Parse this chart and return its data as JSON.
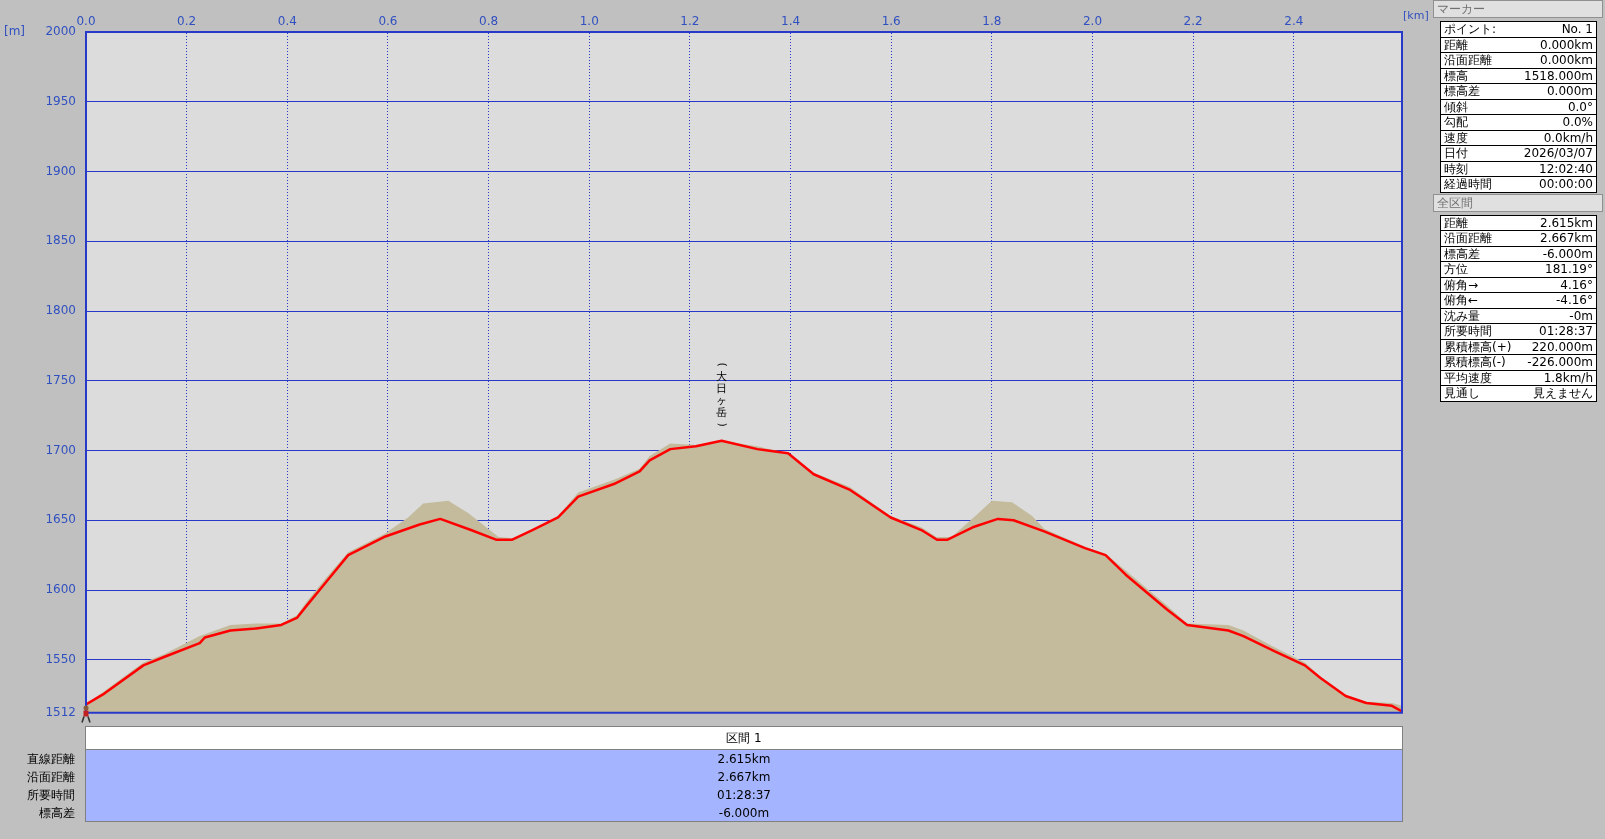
{
  "chart_data": [
    {
      "type": "area",
      "xlabel": "[km]",
      "ylabel": "[m]",
      "xlim": [
        0,
        2.615
      ],
      "ylim": [
        1512,
        2000
      ],
      "xticks": [
        {
          "value": 0,
          "label": "0.0"
        },
        {
          "value": 0.2,
          "label": "0.2"
        },
        {
          "value": 0.4,
          "label": "0.4"
        },
        {
          "value": 0.6,
          "label": "0.6"
        },
        {
          "value": 0.8,
          "label": "0.8"
        },
        {
          "value": 1,
          "label": "1.0"
        },
        {
          "value": 1.2,
          "label": "1.2"
        },
        {
          "value": 1.4,
          "label": "1.4"
        },
        {
          "value": 1.6,
          "label": "1.6"
        },
        {
          "value": 1.8,
          "label": "1.8"
        },
        {
          "value": 2,
          "label": "2.0"
        },
        {
          "value": 2.2,
          "label": "2.2"
        },
        {
          "value": 2.4,
          "label": "2.4"
        }
      ],
      "yticks": [
        1512,
        1550,
        1600,
        1650,
        1700,
        1750,
        1800,
        1850,
        1900,
        1950,
        2000
      ],
      "grid": true,
      "legend": false,
      "marker": "none",
      "series": [
        {
          "type": "area",
          "color": "#c3bb9c",
          "x": [
            0,
            0.114,
            0.155,
            0.226,
            0.287,
            0.338,
            0.388,
            0.419,
            0.439,
            0.48,
            0.521,
            0.592,
            0.64,
            0.67,
            0.72,
            0.76,
            0.82,
            0.85,
            0.9,
            0.938,
            0.978,
            1.049,
            1.1,
            1.12,
            1.161,
            1.212,
            1.263,
            1.334,
            1.395,
            1.446,
            1.517,
            1.599,
            1.66,
            1.69,
            1.72,
            1.77,
            1.8,
            1.84,
            1.88,
            1.904,
            1.985,
            2.026,
            2.066,
            2.148,
            2.188,
            2.27,
            2.3,
            2.351,
            2.422,
            2.453,
            2.503,
            2.544,
            2.595,
            2.615
          ],
          "values": [
            1518,
            1548,
            1554,
            1567,
            1575,
            1576,
            1576,
            1582,
            1592,
            1610,
            1627,
            1640,
            1652,
            1662,
            1664,
            1655,
            1638,
            1637,
            1645,
            1653,
            1670,
            1679,
            1687,
            1696,
            1705,
            1704,
            1707,
            1703,
            1698,
            1684,
            1674,
            1653,
            1645,
            1638,
            1638,
            1654,
            1664,
            1663,
            1653,
            1644,
            1631,
            1626,
            1614,
            1589,
            1576,
            1575,
            1571,
            1561,
            1548,
            1538,
            1525,
            1520,
            1519,
            1517
          ]
        },
        {
          "type": "line",
          "color": "#ff0000",
          "x": [
            0,
            0.033,
            0.114,
            0.155,
            0.226,
            0.236,
            0.287,
            0.338,
            0.388,
            0.419,
            0.439,
            0.48,
            0.521,
            0.592,
            0.663,
            0.704,
            0.765,
            0.816,
            0.846,
            0.887,
            0.938,
            0.978,
            1.049,
            1.1,
            1.12,
            1.161,
            1.212,
            1.263,
            1.334,
            1.395,
            1.446,
            1.517,
            1.599,
            1.66,
            1.691,
            1.711,
            1.762,
            1.812,
            1.843,
            1.904,
            1.985,
            2.026,
            2.066,
            2.148,
            2.188,
            2.27,
            2.3,
            2.351,
            2.422,
            2.453,
            2.503,
            2.544,
            2.595,
            2.615
          ],
          "values": [
            1518,
            1525,
            1546,
            1552,
            1562,
            1566,
            1571,
            1572.5,
            1575,
            1580,
            1589,
            1607,
            1625,
            1638,
            1647,
            1651,
            1643,
            1636,
            1636,
            1643,
            1652,
            1667,
            1676,
            1685,
            1693,
            1701,
            1703,
            1707,
            1701,
            1698,
            1683,
            1672,
            1652,
            1643,
            1636,
            1636,
            1645,
            1651,
            1650,
            1642,
            1630,
            1625,
            1611,
            1586,
            1575,
            1571,
            1567,
            1558,
            1546,
            1537,
            1524,
            1519,
            1517,
            1513
          ],
          "line_style": "solid"
        }
      ],
      "annotations": [
        {
          "text": "(大日ヶ岳)",
          "x": 1.263,
          "y": 1707
        }
      ]
    },
    {
      "type": "other",
      "title": "マーカー",
      "annotations": [
        "ポイント:",
        "No. 1",
        "距離",
        "0.000km",
        "沿面距離",
        "0.000km",
        "標高",
        "1518.000m",
        "標高差",
        "0.000m",
        "傾斜",
        "0.0°",
        "勾配",
        "0.0%",
        "速度",
        "0.0km/h",
        "日付",
        "2026/03/07",
        "時刻",
        "12:02:40",
        "経過時間",
        "00:00:00"
      ]
    },
    {
      "type": "other",
      "title": "全区間",
      "annotations": [
        "距離",
        "2.615km",
        "沿面距離",
        "2.667km",
        "標高差",
        "-6.000m",
        "方位",
        "181.19°",
        "俯角→",
        "4.16°",
        "俯角←",
        "-4.16°",
        "沈み量",
        "-0m",
        "所要時間",
        "01:28:37",
        "累積標高(+)",
        "220.000m",
        "累積標高(-)",
        "-226.000m",
        "平均速度",
        "1.8km/h",
        "見通し",
        "見えません"
      ]
    },
    {
      "type": "other",
      "title": "区間 1",
      "annotations": [
        "直線距離",
        "2.615km",
        "沿面距離",
        "2.667km",
        "所要時間",
        "01:28:37",
        "標高差",
        "-6.000m"
      ]
    }
  ]
}
